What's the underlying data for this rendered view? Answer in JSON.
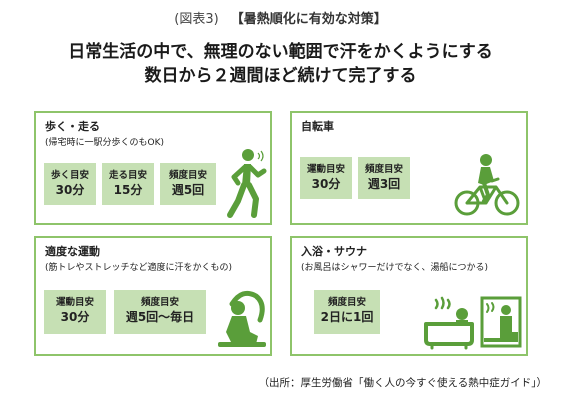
{
  "header": {
    "figure_label": "(図表3)",
    "title": "【暑熱順化に有効な対策】"
  },
  "headline": {
    "line1": "日常生活の中で、無理のない範囲で汗をかくようにする",
    "line2": "数日から２週間ほど続けて完了する"
  },
  "cards": {
    "walk": {
      "title": "歩く・走る",
      "subtitle": "(帰宅時に一駅分歩くのもOK)",
      "badges": [
        {
          "label": "歩く目安",
          "value": "30分"
        },
        {
          "label": "走る目安",
          "value": "15分"
        },
        {
          "label": "頻度目安",
          "value": "週5回"
        }
      ],
      "icon": "runner-icon"
    },
    "bike": {
      "title": "自転車",
      "badges": [
        {
          "label": "運動目安",
          "value": "30分"
        },
        {
          "label": "頻度目安",
          "value": "週3回"
        }
      ],
      "icon": "cyclist-icon"
    },
    "exercise": {
      "title": "適度な運動",
      "subtitle": "(筋トレやストレッチなど適度に汗をかくもの)",
      "badges": [
        {
          "label": "運動目安",
          "value": "30分"
        },
        {
          "label": "頻度目安",
          "value": "週5回～毎日"
        }
      ],
      "icon": "stretch-icon"
    },
    "bath": {
      "title": "入浴・サウナ",
      "subtitle": "(お風呂はシャワーだけでなく、湯船につかる)",
      "badges": [
        {
          "label": "頻度目安",
          "value": "2日に1回"
        }
      ],
      "icon": "bath-sauna-icon"
    }
  },
  "footer": {
    "source": "（出所：厚生労働省「働く人の今すぐ使える熱中症ガイド」）"
  },
  "colors": {
    "border": "#8ec46a",
    "badge": "#c6e0b4",
    "icon": "#5a9e3a"
  }
}
